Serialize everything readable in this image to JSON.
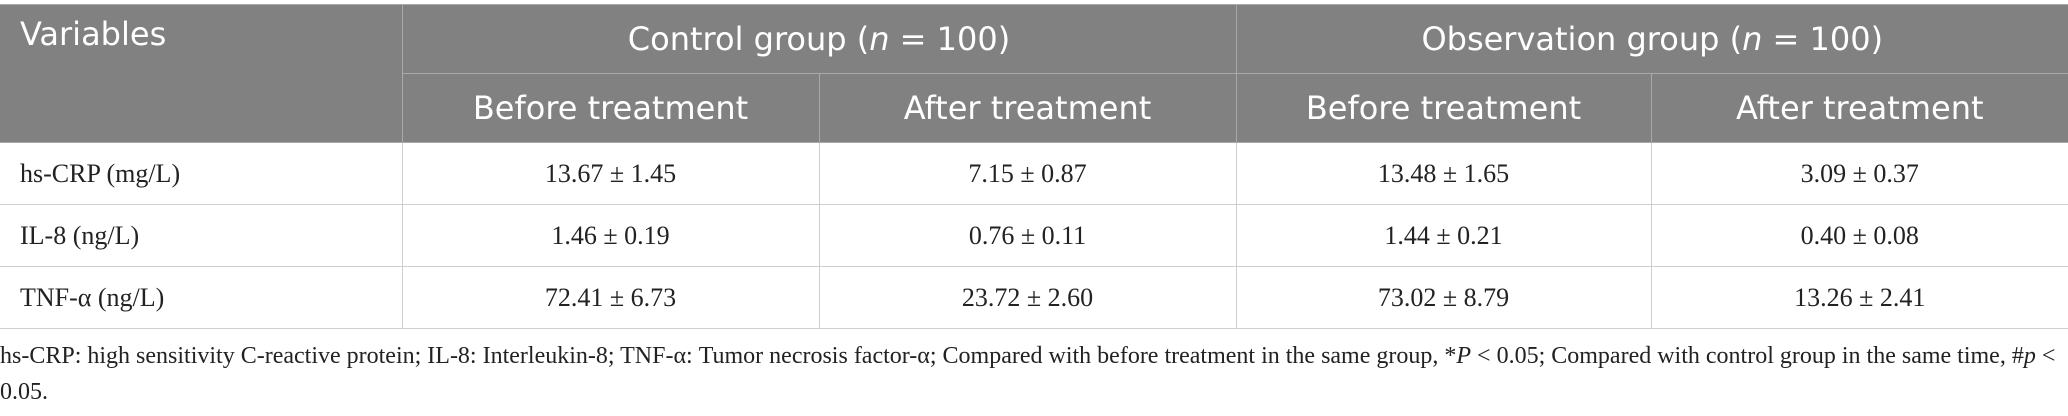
{
  "table": {
    "header": {
      "variables": "Variables",
      "groups": [
        {
          "parts": [
            "Control group (",
            "n",
            " = 100)"
          ]
        },
        {
          "parts": [
            "Observation group (",
            "n",
            " = 100)"
          ]
        }
      ],
      "subheaders": [
        "Before treatment",
        "After treatment",
        "Before treatment",
        "After treatment"
      ]
    },
    "rows": [
      [
        "hs-CRP (mg/L)",
        "13.67 ± 1.45",
        "7.15 ± 0.87",
        "13.48 ± 1.65",
        "3.09 ± 0.37"
      ],
      [
        "IL-8 (ng/L)",
        "1.46 ± 0.19",
        "0.76 ± 0.11",
        "1.44 ± 0.21",
        "0.40 ± 0.08"
      ],
      [
        "TNF-α (ng/L)",
        "72.41 ± 6.73",
        "23.72 ± 2.60",
        "73.02 ± 8.79",
        "13.26 ± 2.41"
      ]
    ]
  },
  "footnote": {
    "parts": [
      "hs-CRP: high sensitivity C-reactive protein; IL-8: Interleukin-8; TNF-α: Tumor necrosis factor-α; Compared with before treatment in the same group, *",
      "P",
      " < 0.05; Compared with control group in the same time, #",
      "p",
      " < 0.05."
    ]
  }
}
